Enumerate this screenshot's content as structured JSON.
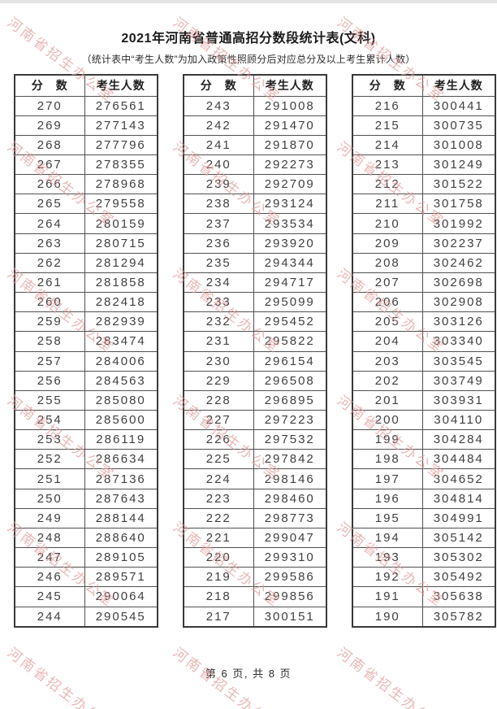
{
  "page": {
    "title": "2021年河南省普通高招分数段统计表(文科)",
    "subtitle": "（统计表中“考生人数”为加入政策性照顾分后对应总分及以上考生累计人数）",
    "footer_text": "第 6 页, 共 8 页",
    "watermark_text": "河南省招生办公室",
    "watermark_color": "#e29a9a"
  },
  "table_headers": {
    "score": "分　数",
    "count": "考生人数"
  },
  "tables": [
    {
      "rows": [
        [
          270,
          276561
        ],
        [
          269,
          277143
        ],
        [
          268,
          277796
        ],
        [
          267,
          278355
        ],
        [
          266,
          278968
        ],
        [
          265,
          279558
        ],
        [
          264,
          280159
        ],
        [
          263,
          280715
        ],
        [
          262,
          281294
        ],
        [
          261,
          281858
        ],
        [
          260,
          282418
        ],
        [
          259,
          282939
        ],
        [
          258,
          283474
        ],
        [
          257,
          284006
        ],
        [
          256,
          284563
        ],
        [
          255,
          285080
        ],
        [
          254,
          285600
        ],
        [
          253,
          286119
        ],
        [
          252,
          286634
        ],
        [
          251,
          287136
        ],
        [
          250,
          287643
        ],
        [
          249,
          288144
        ],
        [
          248,
          288640
        ],
        [
          247,
          289105
        ],
        [
          246,
          289571
        ],
        [
          245,
          290064
        ],
        [
          244,
          290545
        ]
      ]
    },
    {
      "rows": [
        [
          243,
          291008
        ],
        [
          242,
          291470
        ],
        [
          241,
          291870
        ],
        [
          240,
          292273
        ],
        [
          239,
          292709
        ],
        [
          238,
          293124
        ],
        [
          237,
          293534
        ],
        [
          236,
          293920
        ],
        [
          235,
          294344
        ],
        [
          234,
          294717
        ],
        [
          233,
          295099
        ],
        [
          232,
          295452
        ],
        [
          231,
          295822
        ],
        [
          230,
          296154
        ],
        [
          229,
          296508
        ],
        [
          228,
          296895
        ],
        [
          227,
          297223
        ],
        [
          226,
          297532
        ],
        [
          225,
          297842
        ],
        [
          224,
          298146
        ],
        [
          223,
          298460
        ],
        [
          222,
          298773
        ],
        [
          221,
          299047
        ],
        [
          220,
          299310
        ],
        [
          219,
          299586
        ],
        [
          218,
          299856
        ],
        [
          217,
          300151
        ]
      ]
    },
    {
      "rows": [
        [
          216,
          300441
        ],
        [
          215,
          300735
        ],
        [
          214,
          301008
        ],
        [
          213,
          301249
        ],
        [
          212,
          301522
        ],
        [
          211,
          301758
        ],
        [
          210,
          301992
        ],
        [
          209,
          302237
        ],
        [
          208,
          302462
        ],
        [
          207,
          302698
        ],
        [
          206,
          302908
        ],
        [
          205,
          303126
        ],
        [
          204,
          303340
        ],
        [
          203,
          303545
        ],
        [
          202,
          303749
        ],
        [
          201,
          303931
        ],
        [
          200,
          304110
        ],
        [
          199,
          304284
        ],
        [
          198,
          304484
        ],
        [
          197,
          304652
        ],
        [
          196,
          304814
        ],
        [
          195,
          304991
        ],
        [
          194,
          305142
        ],
        [
          193,
          305302
        ],
        [
          192,
          305492
        ],
        [
          191,
          305638
        ],
        [
          190,
          305782
        ]
      ]
    }
  ]
}
